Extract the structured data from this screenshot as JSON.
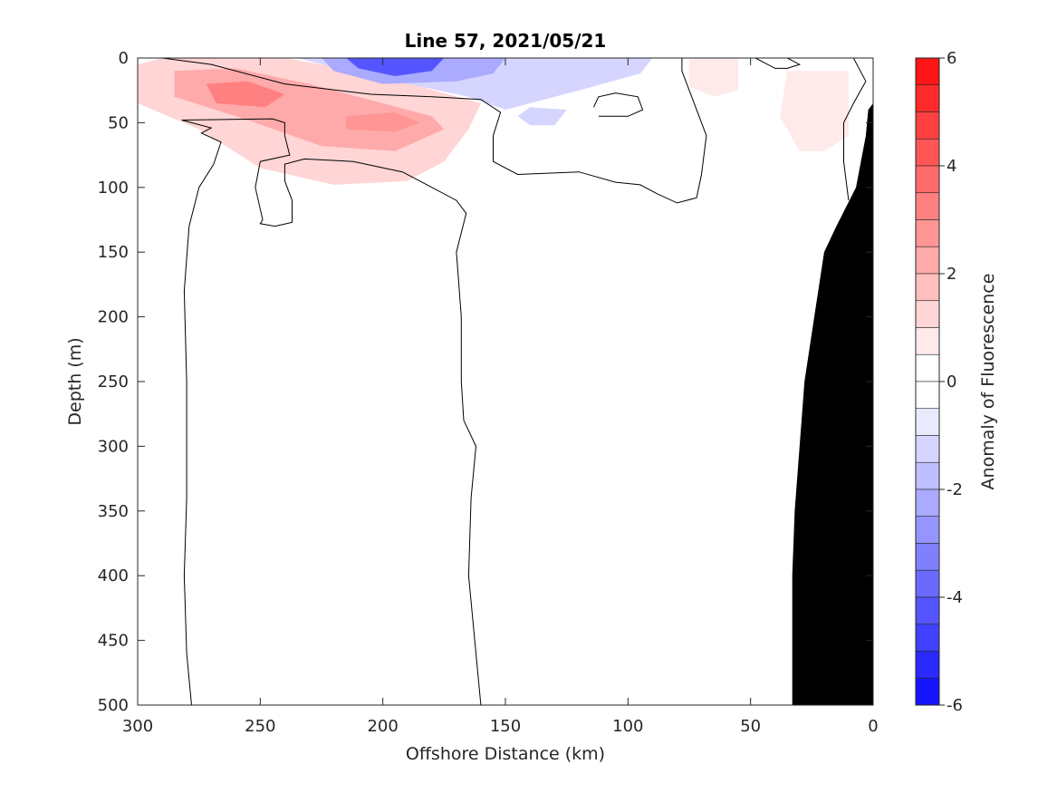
{
  "chart_data": {
    "type": "contour",
    "title": "Line 57, 2021/05/21",
    "xlabel": "Offshore Distance (km)",
    "ylabel": "Depth (m)",
    "colorbar_label": "Anomaly of Fluorescence",
    "xlim": [
      300,
      0
    ],
    "ylim": [
      500,
      0
    ],
    "x_reversed": true,
    "y_reversed": true,
    "x_ticks": [
      300,
      250,
      200,
      150,
      100,
      50,
      0
    ],
    "y_ticks": [
      0,
      50,
      100,
      150,
      200,
      250,
      300,
      350,
      400,
      450,
      500
    ],
    "colorbar": {
      "range": [
        -6,
        6
      ],
      "step": 0.5,
      "ticks": [
        6,
        4,
        2,
        0,
        -2,
        -4,
        -6
      ],
      "positive_color": "#ff0000",
      "negative_color": "#0000ff",
      "neutral_color": "#ffffff"
    },
    "grid": false,
    "filled_regions": [
      {
        "level": 1.0,
        "points": [
          [
            300,
            5
          ],
          [
            290,
            0
          ],
          [
            240,
            0
          ],
          [
            210,
            10
          ],
          [
            185,
            22
          ],
          [
            160,
            35
          ],
          [
            165,
            55
          ],
          [
            175,
            80
          ],
          [
            190,
            95
          ],
          [
            220,
            98
          ],
          [
            250,
            85
          ],
          [
            275,
            55
          ],
          [
            300,
            35
          ]
        ]
      },
      {
        "level": 2.0,
        "points": [
          [
            285,
            10
          ],
          [
            260,
            8
          ],
          [
            230,
            20
          ],
          [
            200,
            35
          ],
          [
            180,
            45
          ],
          [
            175,
            55
          ],
          [
            195,
            72
          ],
          [
            225,
            68
          ],
          [
            255,
            48
          ],
          [
            285,
            30
          ]
        ]
      },
      {
        "level": 3.0,
        "points": [
          [
            272,
            20
          ],
          [
            255,
            18
          ],
          [
            240,
            28
          ],
          [
            248,
            38
          ],
          [
            268,
            35
          ]
        ]
      },
      {
        "level": 2.5,
        "points": [
          [
            215,
            45
          ],
          [
            195,
            42
          ],
          [
            185,
            50
          ],
          [
            195,
            57
          ],
          [
            215,
            55
          ]
        ]
      },
      {
        "level": -1.0,
        "points": [
          [
            235,
            0
          ],
          [
            90,
            0
          ],
          [
            95,
            12
          ],
          [
            120,
            25
          ],
          [
            150,
            40
          ],
          [
            165,
            30
          ],
          [
            185,
            22
          ],
          [
            210,
            12
          ]
        ]
      },
      {
        "level": -2.0,
        "points": [
          [
            225,
            0
          ],
          [
            150,
            0
          ],
          [
            155,
            12
          ],
          [
            170,
            18
          ],
          [
            200,
            20
          ],
          [
            220,
            10
          ]
        ]
      },
      {
        "level": -4.0,
        "points": [
          [
            215,
            0
          ],
          [
            175,
            0
          ],
          [
            180,
            10
          ],
          [
            195,
            14
          ],
          [
            210,
            8
          ]
        ]
      },
      {
        "level": -1.0,
        "points": [
          [
            145,
            45
          ],
          [
            140,
            52
          ],
          [
            130,
            52
          ],
          [
            125,
            40
          ],
          [
            140,
            38
          ]
        ]
      },
      {
        "level": 0.5,
        "points": [
          [
            75,
            0
          ],
          [
            55,
            0
          ],
          [
            55,
            25
          ],
          [
            65,
            30
          ],
          [
            75,
            22
          ]
        ]
      },
      {
        "level": 0.5,
        "points": [
          [
            35,
            10
          ],
          [
            10,
            10
          ],
          [
            10,
            60
          ],
          [
            20,
            72
          ],
          [
            30,
            72
          ],
          [
            38,
            45
          ]
        ]
      }
    ],
    "contour_lines": [
      {
        "level": 0,
        "points": [
          [
            278,
            500
          ],
          [
            280,
            460
          ],
          [
            281,
            400
          ],
          [
            280,
            340
          ],
          [
            280,
            250
          ],
          [
            281,
            180
          ],
          [
            279,
            130
          ],
          [
            275,
            100
          ],
          [
            269,
            82
          ],
          [
            266,
            65
          ],
          [
            274,
            58
          ],
          [
            270,
            54
          ],
          [
            282,
            48
          ],
          [
            245,
            47
          ],
          [
            240,
            50
          ],
          [
            240,
            60
          ],
          [
            238,
            75
          ],
          [
            250,
            80
          ],
          [
            252,
            100
          ],
          [
            249,
            125
          ],
          [
            250,
            128
          ],
          [
            244,
            130
          ],
          [
            237,
            127
          ],
          [
            237,
            110
          ],
          [
            240,
            95
          ],
          [
            240,
            82
          ],
          [
            232,
            78
          ],
          [
            212,
            80
          ],
          [
            192,
            88
          ],
          [
            184,
            96
          ],
          [
            170,
            110
          ],
          [
            166,
            120
          ],
          [
            170,
            150
          ],
          [
            168,
            200
          ],
          [
            168,
            250
          ],
          [
            167,
            280
          ],
          [
            162,
            300
          ],
          [
            164,
            340
          ],
          [
            165,
            400
          ],
          [
            162,
            460
          ],
          [
            160,
            500
          ]
        ]
      },
      {
        "level": 0,
        "points": [
          [
            290,
            0
          ],
          [
            270,
            5
          ],
          [
            240,
            20
          ],
          [
            205,
            28
          ],
          [
            180,
            30
          ],
          [
            160,
            32
          ],
          [
            152,
            42
          ],
          [
            155,
            60
          ],
          [
            155,
            80
          ],
          [
            145,
            90
          ],
          [
            120,
            88
          ],
          [
            105,
            96
          ],
          [
            95,
            98
          ],
          [
            88,
            105
          ],
          [
            80,
            112
          ],
          [
            72,
            108
          ],
          [
            70,
            90
          ],
          [
            68,
            60
          ],
          [
            75,
            25
          ],
          [
            78,
            10
          ],
          [
            78,
            0
          ]
        ]
      },
      {
        "level": 0,
        "points": [
          [
            48,
            0
          ],
          [
            40,
            8
          ],
          [
            35,
            8
          ],
          [
            30,
            5
          ],
          [
            35,
            0
          ]
        ]
      },
      {
        "level": 0,
        "points": [
          [
            112,
            45
          ],
          [
            100,
            45
          ],
          [
            94,
            40
          ],
          [
            96,
            30
          ],
          [
            105,
            27
          ],
          [
            112,
            30
          ],
          [
            114,
            38
          ]
        ]
      },
      {
        "level": 0,
        "points": [
          [
            8,
            0
          ],
          [
            3,
            18
          ],
          [
            8,
            35
          ],
          [
            12,
            50
          ],
          [
            12,
            80
          ],
          [
            10,
            110
          ]
        ]
      }
    ],
    "bathymetry": {
      "color": "#000000",
      "points": [
        [
          0,
          35
        ],
        [
          2,
          40
        ],
        [
          3,
          60
        ],
        [
          5,
          80
        ],
        [
          7,
          100
        ],
        [
          15,
          130
        ],
        [
          20,
          150
        ],
        [
          24,
          200
        ],
        [
          28,
          250
        ],
        [
          30,
          300
        ],
        [
          32,
          350
        ],
        [
          33,
          400
        ],
        [
          33,
          450
        ],
        [
          33,
          500
        ]
      ]
    }
  }
}
